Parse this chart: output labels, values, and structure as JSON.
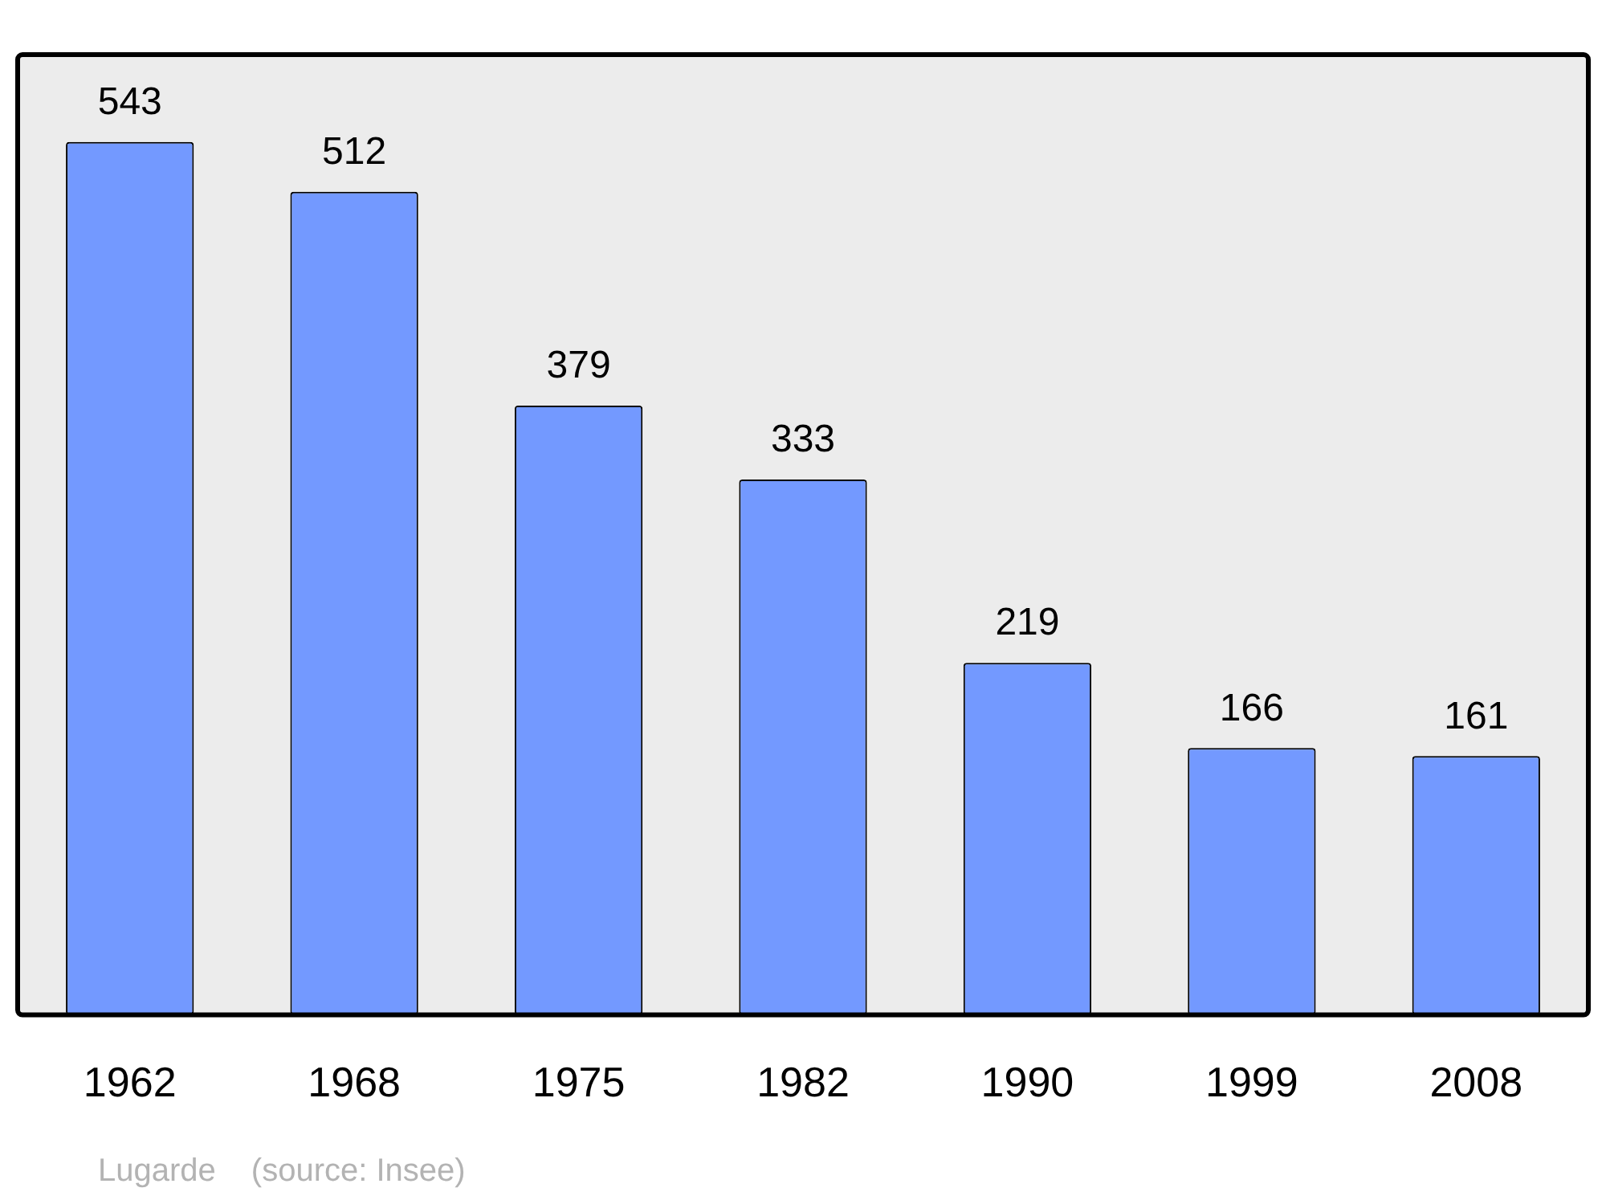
{
  "chart_data": {
    "type": "bar",
    "categories": [
      "1962",
      "1968",
      "1975",
      "1982",
      "1990",
      "1999",
      "2008"
    ],
    "values": [
      543,
      512,
      379,
      333,
      219,
      166,
      161
    ],
    "color": "#7399ff",
    "data_labels": true,
    "grid": false,
    "legend": false,
    "annotations": [
      "Lugarde",
      "(source: Insee)"
    ]
  }
}
